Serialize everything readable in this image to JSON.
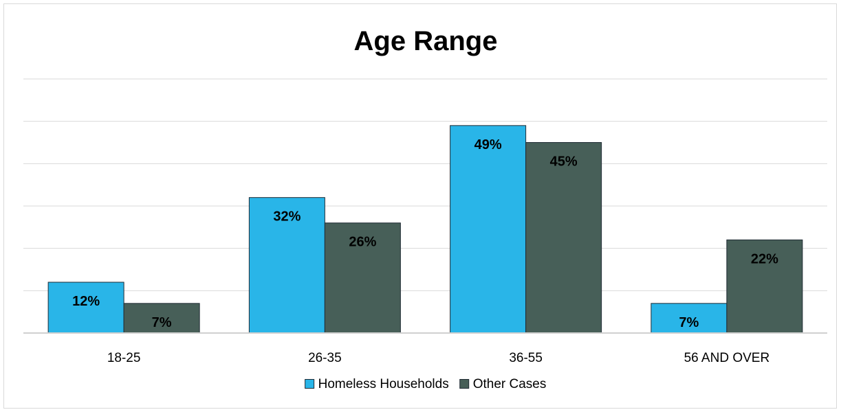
{
  "chart_data": {
    "type": "bar",
    "title": "Age Range",
    "xlabel": "",
    "ylabel": "",
    "categories": [
      "18-25",
      "26-35",
      "36-55",
      "56 AND OVER"
    ],
    "series": [
      {
        "name": "Homeless Households",
        "values": [
          12,
          32,
          49,
          7
        ],
        "color": "#29b5e8",
        "labels": [
          "12%",
          "32%",
          "49%",
          "7%"
        ]
      },
      {
        "name": "Other Cases",
        "values": [
          7,
          26,
          45,
          22
        ],
        "color": "#475f58",
        "labels": [
          "7%",
          "26%",
          "45%",
          "22%"
        ]
      }
    ],
    "ylim": [
      0,
      60
    ],
    "grid": true,
    "legend_position": "bottom"
  }
}
